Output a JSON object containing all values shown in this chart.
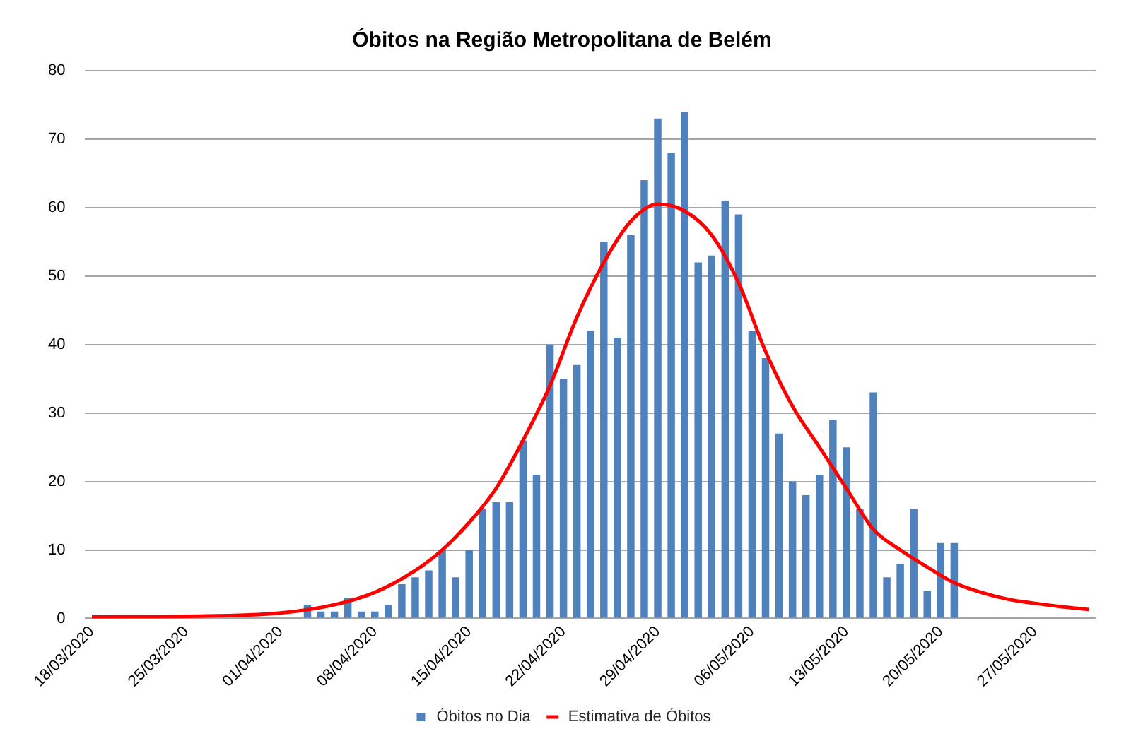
{
  "chart_data": {
    "type": "bar",
    "title": "Óbitos na Região Metropolitana de Belém",
    "categories": [
      "18/03/2020",
      null,
      null,
      null,
      null,
      null,
      null,
      "25/03/2020",
      null,
      null,
      null,
      null,
      null,
      null,
      "01/04/2020",
      null,
      null,
      null,
      null,
      null,
      null,
      "08/04/2020",
      null,
      null,
      null,
      null,
      null,
      null,
      "15/04/2020",
      null,
      null,
      null,
      null,
      null,
      null,
      "22/04/2020",
      null,
      null,
      null,
      null,
      null,
      null,
      "29/04/2020",
      null,
      null,
      null,
      null,
      null,
      null,
      "06/05/2020",
      null,
      null,
      null,
      null,
      null,
      null,
      "13/05/2020",
      null,
      null,
      null,
      null,
      null,
      null,
      "20/05/2020",
      null,
      null,
      null,
      null,
      null,
      null,
      "27/05/2020",
      null,
      null,
      null,
      null
    ],
    "series": [
      {
        "name": "Óbitos no Dia",
        "color": "#4f81bd",
        "values": [
          null,
          null,
          null,
          null,
          null,
          null,
          null,
          null,
          null,
          null,
          null,
          null,
          null,
          null,
          null,
          null,
          2,
          1,
          1,
          3,
          1,
          1,
          2,
          5,
          6,
          7,
          10,
          6,
          10,
          16,
          17,
          17,
          26,
          21,
          40,
          35,
          37,
          42,
          55,
          41,
          56,
          64,
          73,
          68,
          74,
          52,
          53,
          61,
          59,
          42,
          38,
          27,
          20,
          18,
          21,
          29,
          25,
          16,
          33,
          6,
          8,
          16,
          4,
          11,
          11,
          null,
          null,
          null,
          null,
          null,
          null,
          null,
          null,
          null,
          null
        ]
      },
      {
        "name": "Estimativa de Óbitos",
        "type": "line",
        "color": "#ff0000",
        "values": [
          0.2,
          null,
          null,
          null,
          null,
          null,
          null,
          0.3,
          null,
          null,
          null,
          null,
          null,
          null,
          0.8,
          null,
          null,
          null,
          2,
          null,
          null,
          3.8,
          null,
          null,
          7,
          null,
          10,
          null,
          14,
          null,
          19,
          null,
          26,
          null,
          34,
          null,
          44,
          null,
          52,
          null,
          58,
          null,
          60.5,
          null,
          59.5,
          null,
          56,
          null,
          49,
          null,
          39,
          null,
          31,
          null,
          25,
          null,
          19,
          null,
          13,
          null,
          10,
          null,
          7.5,
          null,
          5.2,
          null,
          3.8,
          null,
          2.8,
          null,
          2.2,
          null,
          1.7,
          null,
          1.3
        ]
      }
    ],
    "ylim": [
      0,
      80
    ],
    "yticks": [
      0,
      10,
      20,
      30,
      40,
      50,
      60,
      70,
      80
    ],
    "grid": "y",
    "legend": "bottom",
    "marker": "none",
    "line_style": "solid"
  }
}
